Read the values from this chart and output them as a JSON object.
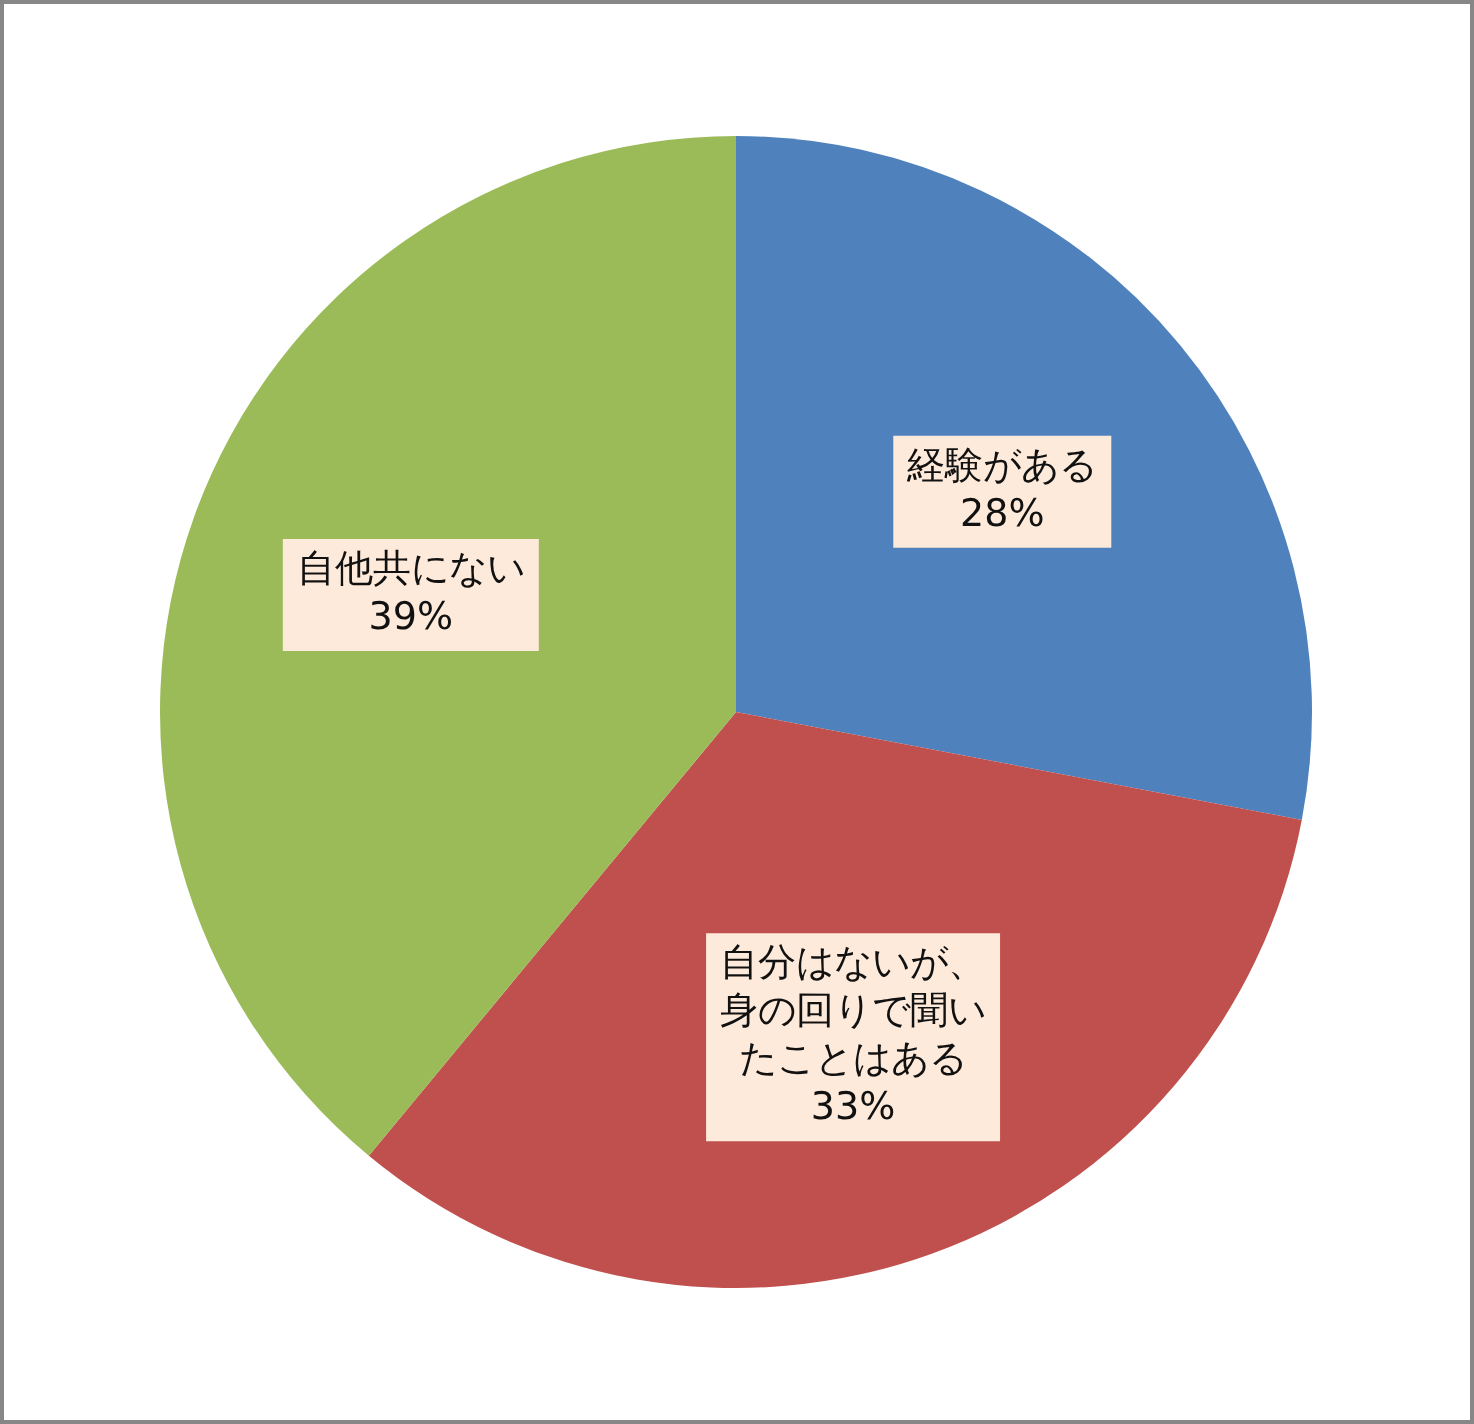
{
  "chart_data": {
    "type": "pie",
    "categories": [
      "経験がある",
      "自分はないが、身の回りで聞いたことはある",
      "自他共にない"
    ],
    "values": [
      28,
      33,
      39
    ],
    "colors": [
      "#4f81bd",
      "#c0504d",
      "#9bbb59"
    ],
    "value_labels": [
      "28%",
      "33%",
      "39%"
    ]
  }
}
